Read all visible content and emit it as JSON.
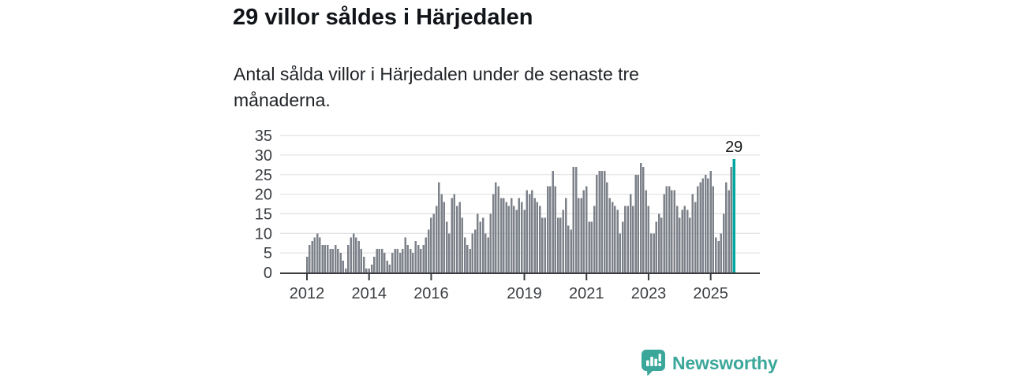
{
  "header": {
    "title": "29 villor såldes i Härjedalen",
    "subtitle": "Antal sålda villor i Härjedalen under de senaste tre månaderna."
  },
  "chart_data": {
    "type": "bar",
    "title": "29 villor såldes i Härjedalen",
    "subtitle": "Antal sålda villor i Härjedalen under de senaste tre månaderna.",
    "xlabel": "",
    "ylabel": "",
    "ylim": [
      0,
      35
    ],
    "grid": "horizontal",
    "y_ticks": [
      0,
      5,
      10,
      15,
      20,
      25,
      30,
      35
    ],
    "x_ticks": [
      {
        "label": "2012",
        "month_index": 0
      },
      {
        "label": "2014",
        "month_index": 24
      },
      {
        "label": "2016",
        "month_index": 48
      },
      {
        "label": "2019",
        "month_index": 84
      },
      {
        "label": "2021",
        "month_index": 108
      },
      {
        "label": "2023",
        "month_index": 132
      },
      {
        "label": "2025",
        "month_index": 156
      }
    ],
    "series_note": "monthly bars starting January 2012, rolling three-month sales counts",
    "values": [
      4,
      7,
      8,
      9,
      10,
      9,
      7,
      7,
      7,
      6,
      6,
      7,
      6,
      5,
      3,
      1,
      7,
      9,
      10,
      9,
      8,
      6,
      4,
      1,
      1,
      2,
      4,
      6,
      6,
      6,
      5,
      3,
      2,
      5,
      6,
      6,
      5,
      6,
      9,
      7,
      6,
      5,
      8,
      7,
      6,
      7,
      9,
      11,
      14,
      15,
      17,
      23,
      20,
      18,
      13,
      10,
      19,
      20,
      17,
      18,
      14,
      9,
      7,
      6,
      10,
      11,
      15,
      13,
      14,
      10,
      9,
      15,
      20,
      23,
      22,
      19,
      19,
      18,
      17,
      19,
      17,
      16,
      19,
      18,
      16,
      21,
      20,
      21,
      19,
      18,
      17,
      14,
      14,
      22,
      22,
      26,
      22,
      14,
      14,
      16,
      19,
      12,
      11,
      27,
      27,
      19,
      19,
      21,
      22,
      13,
      13,
      17,
      25,
      26,
      26,
      26,
      23,
      19,
      18,
      17,
      16,
      10,
      13,
      17,
      17,
      20,
      17,
      25,
      25,
      28,
      27,
      21,
      17,
      10,
      10,
      13,
      15,
      14,
      20,
      22,
      22,
      21,
      21,
      17,
      14,
      16,
      17,
      16,
      14,
      20,
      18,
      22,
      23,
      24,
      25,
      24,
      26,
      22,
      9,
      8,
      10,
      15,
      23,
      21,
      27,
      29
    ],
    "highlight_index": 165,
    "annotation": {
      "text": "29",
      "value": 29
    },
    "bar_color": "#7d818a",
    "highlight_color": "#00a79e",
    "gridline_color": "#e4e4e6",
    "axis_color": "#3a3c40"
  },
  "footer": {
    "brand": "Newsworthy",
    "logo_icon": "newsworthy-speech-bubble-bar-chart-icon",
    "brand_color": "#3ba79b"
  }
}
